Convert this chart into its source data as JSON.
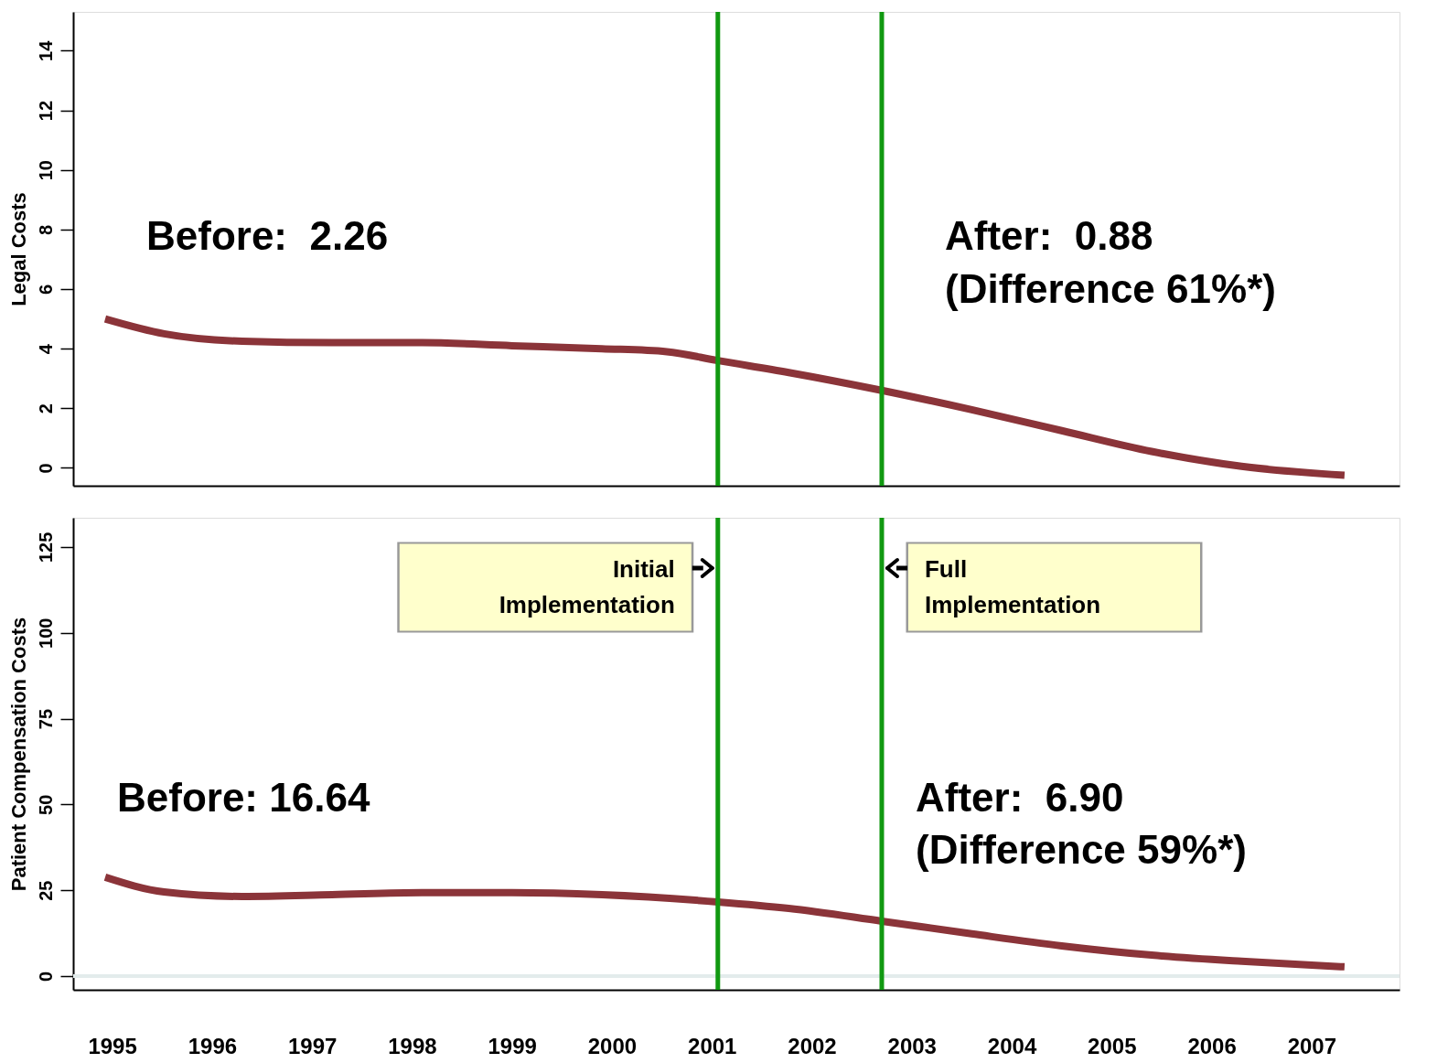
{
  "chart_data": [
    {
      "type": "line",
      "ylabel": "Legal Costs",
      "xlim": [
        1994.61,
        2007.88
      ],
      "ylim": [
        -0.6,
        15.3
      ],
      "yticks": [
        0,
        2,
        4,
        6,
        8,
        10,
        12,
        14
      ],
      "tick_labels": "y",
      "grid": false,
      "marker": "none",
      "line_style": "solid",
      "x": [
        1994.93,
        1995.52,
        1996.3,
        1997.2,
        1998.1,
        1999.0,
        1999.9,
        2000.55,
        2001.06,
        2001.77,
        2002.7,
        2003.6,
        2004.5,
        2005.4,
        2006.3,
        2007.33
      ],
      "series": [
        {
          "color": "#8b3439",
          "values": [
            5.0,
            4.5,
            4.25,
            4.2,
            4.2,
            4.1,
            4.0,
            3.9,
            3.6,
            3.2,
            2.6,
            1.95,
            1.25,
            0.55,
            0.05,
            -0.25
          ]
        }
      ],
      "ref_lines": [
        {
          "axis": "x",
          "value": 2001.06,
          "color": "#119911"
        },
        {
          "axis": "x",
          "value": 2002.7,
          "color": "#119911"
        }
      ],
      "annotations": [
        "Before:  2.26",
        "After:  0.88",
        "(Difference 61%*)"
      ]
    },
    {
      "type": "line",
      "ylabel": "Patient Compensation Costs",
      "xlim": [
        1994.61,
        2007.88
      ],
      "ylim": [
        -4,
        133.5
      ],
      "yticks": [
        0,
        25,
        50,
        75,
        100,
        125
      ],
      "xticks": [
        1995,
        1996,
        1997,
        1998,
        1999,
        2000,
        2001,
        2002,
        2003,
        2004,
        2005,
        2006,
        2007
      ],
      "grid": false,
      "marker": "none",
      "line_style": "solid",
      "x": [
        1994.93,
        1995.52,
        1996.3,
        1997.2,
        1998.1,
        1999.0,
        1999.9,
        2001.06,
        2001.77,
        2002.7,
        2003.6,
        2004.5,
        2005.4,
        2006.3,
        2007.33
      ],
      "series": [
        {
          "color": "#8b3439",
          "values": [
            28.8,
            24.5,
            23.2,
            23.7,
            24.3,
            24.3,
            23.7,
            21.6,
            19.7,
            16.0,
            12.3,
            8.8,
            6.1,
            4.3,
            2.7
          ]
        }
      ],
      "ref_lines": [
        {
          "axis": "x",
          "value": 2001.06,
          "color": "#119911",
          "label": "Initial Implementation"
        },
        {
          "axis": "x",
          "value": 2002.7,
          "color": "#119911",
          "label": "Full Implementation"
        },
        {
          "axis": "y",
          "value": 0,
          "color": "#e3ecec"
        }
      ],
      "annotations": [
        "Before: 16.64",
        "After:  6.90",
        "(Difference 59%*)"
      ]
    }
  ]
}
